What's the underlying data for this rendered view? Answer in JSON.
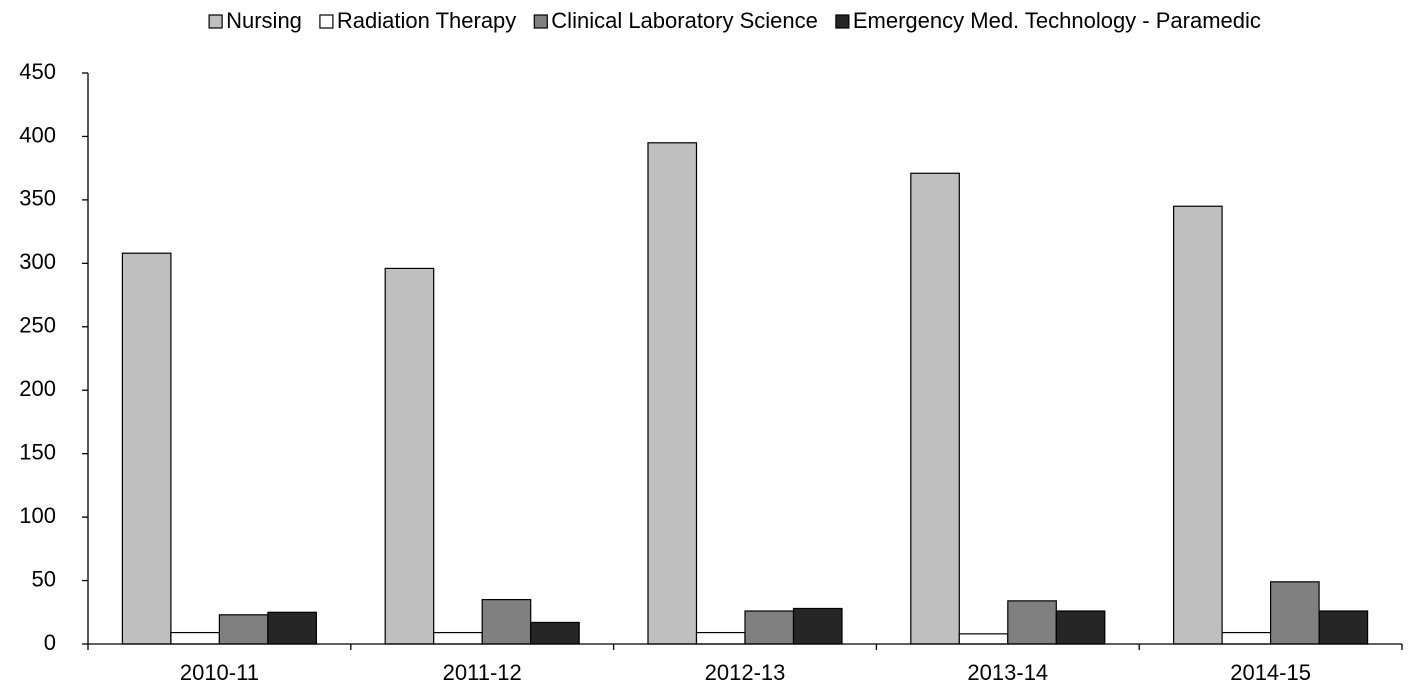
{
  "chart_data": {
    "type": "bar",
    "categories": [
      "2010-11",
      "2011-12",
      "2012-13",
      "2013-14",
      "2014-15"
    ],
    "series": [
      {
        "name": "Nursing",
        "color": "#bfbfbf",
        "values": [
          308,
          296,
          395,
          371,
          345
        ]
      },
      {
        "name": "Radiation Therapy",
        "color": "#ffffff",
        "values": [
          9,
          9,
          9,
          8,
          9
        ]
      },
      {
        "name": "Clinical Laboratory Science",
        "color": "#808080",
        "values": [
          23,
          35,
          26,
          34,
          49
        ]
      },
      {
        "name": "Emergency Med. Technology - Paramedic",
        "color": "#262626",
        "values": [
          25,
          17,
          28,
          26,
          26
        ]
      }
    ],
    "ylim": [
      0,
      450
    ],
    "yticks": [
      0,
      50,
      100,
      150,
      200,
      250,
      300,
      350,
      400,
      450
    ],
    "legend": "top"
  }
}
